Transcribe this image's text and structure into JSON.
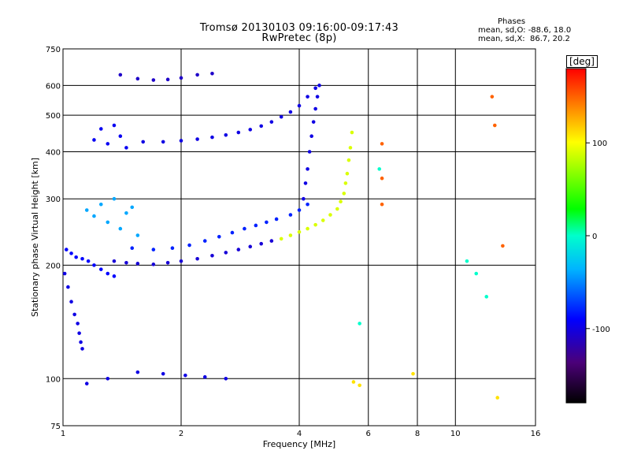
{
  "header": {
    "title": "Tromsø 20130103 09:16:00-09:17:43",
    "subtitle": "RwPretec (8p)",
    "phase_title": "Phases",
    "stat_o": "mean, sd,O: -88.6, 18.0",
    "stat_x": "mean, sd,X:  86.7, 20.2"
  },
  "colorbar": {
    "unit_label": "[deg]",
    "range": [
      -180,
      180
    ],
    "ticks": [
      {
        "value": 100,
        "label": "100"
      },
      {
        "value": 0,
        "label": "0"
      },
      {
        "value": -100,
        "label": "-100"
      }
    ]
  },
  "chart_data": {
    "type": "scatter",
    "xlabel": "Frequency [MHz]",
    "ylabel": "Stationary phase Virtual Height [km]",
    "xscale": "log",
    "yscale": "log",
    "xlim": [
      1,
      16
    ],
    "ylim": [
      75,
      750
    ],
    "xticks": [
      {
        "value": 1,
        "label": "1"
      },
      {
        "value": 2,
        "label": "2"
      },
      {
        "value": 4,
        "label": "4"
      },
      {
        "value": 6,
        "label": "6"
      },
      {
        "value": 8,
        "label": "8"
      },
      {
        "value": 10,
        "label": "10"
      },
      {
        "value": 16,
        "label": "16"
      }
    ],
    "yticks": [
      {
        "value": 75,
        "label": "75"
      },
      {
        "value": 100,
        "label": "100"
      },
      {
        "value": 200,
        "label": "200"
      },
      {
        "value": 300,
        "label": "300"
      },
      {
        "value": 400,
        "label": "400"
      },
      {
        "value": 500,
        "label": "500"
      },
      {
        "value": 600,
        "label": "600"
      },
      {
        "value": 750,
        "label": "750"
      }
    ],
    "grid": true,
    "color_by": "phase (deg)",
    "traces": [
      {
        "name": "",
        "phase": -100,
        "points": [
          [
            1.01,
            190
          ],
          [
            1.03,
            175
          ],
          [
            1.05,
            160
          ],
          [
            1.07,
            148
          ],
          [
            1.09,
            140
          ],
          [
            1.1,
            132
          ],
          [
            1.11,
            125
          ],
          [
            1.12,
            120
          ]
        ]
      },
      {
        "name": "",
        "phase": -90,
        "points": [
          [
            1.02,
            220
          ],
          [
            1.05,
            215
          ],
          [
            1.08,
            210
          ],
          [
            1.12,
            208
          ],
          [
            1.16,
            205
          ],
          [
            1.2,
            200
          ],
          [
            1.25,
            195
          ],
          [
            1.3,
            190
          ],
          [
            1.35,
            187
          ]
        ]
      },
      {
        "name": "",
        "phase": -105,
        "points": [
          [
            1.35,
            205
          ],
          [
            1.45,
            203
          ],
          [
            1.55,
            202
          ],
          [
            1.7,
            201
          ],
          [
            1.85,
            203
          ],
          [
            2.0,
            205
          ],
          [
            2.2,
            208
          ],
          [
            2.4,
            212
          ],
          [
            2.6,
            216
          ],
          [
            2.8,
            220
          ],
          [
            3.0,
            224
          ],
          [
            3.2,
            228
          ],
          [
            3.4,
            232
          ]
        ]
      },
      {
        "name": "",
        "phase": -80,
        "points": [
          [
            1.5,
            222
          ],
          [
            1.7,
            220
          ],
          [
            1.9,
            222
          ],
          [
            2.1,
            226
          ],
          [
            2.3,
            232
          ],
          [
            2.5,
            238
          ],
          [
            2.7,
            244
          ],
          [
            2.9,
            250
          ],
          [
            3.1,
            255
          ],
          [
            3.3,
            260
          ],
          [
            3.5,
            265
          ],
          [
            3.8,
            272
          ],
          [
            4.0,
            280
          ],
          [
            4.2,
            290
          ]
        ]
      },
      {
        "name": "",
        "phase": 90,
        "points": [
          [
            3.6,
            235
          ],
          [
            3.8,
            240
          ],
          [
            4.0,
            245
          ],
          [
            4.2,
            250
          ],
          [
            4.4,
            256
          ],
          [
            4.6,
            263
          ],
          [
            4.8,
            272
          ],
          [
            5.0,
            282
          ],
          [
            5.1,
            295
          ],
          [
            5.2,
            310
          ],
          [
            5.25,
            330
          ],
          [
            5.3,
            350
          ],
          [
            5.35,
            380
          ],
          [
            5.4,
            410
          ],
          [
            5.45,
            450
          ]
        ]
      },
      {
        "name": "",
        "phase": -100,
        "points": [
          [
            4.1,
            300
          ],
          [
            4.15,
            330
          ],
          [
            4.2,
            360
          ],
          [
            4.25,
            400
          ],
          [
            4.3,
            440
          ],
          [
            4.35,
            480
          ],
          [
            4.4,
            520
          ],
          [
            4.45,
            560
          ],
          [
            4.5,
            600
          ]
        ]
      },
      {
        "name": "",
        "phase": -100,
        "points": [
          [
            1.6,
            425
          ],
          [
            1.8,
            425
          ],
          [
            2.0,
            428
          ],
          [
            2.2,
            432
          ],
          [
            2.4,
            437
          ],
          [
            2.6,
            443
          ],
          [
            2.8,
            450
          ],
          [
            3.0,
            458
          ],
          [
            3.2,
            468
          ],
          [
            3.4,
            480
          ],
          [
            3.6,
            495
          ],
          [
            3.8,
            510
          ],
          [
            4.0,
            530
          ],
          [
            4.2,
            560
          ],
          [
            4.4,
            590
          ]
        ]
      },
      {
        "name": "",
        "phase": -40,
        "points": [
          [
            1.15,
            280
          ],
          [
            1.2,
            270
          ],
          [
            1.25,
            290
          ],
          [
            1.3,
            260
          ],
          [
            1.35,
            300
          ],
          [
            1.4,
            250
          ],
          [
            1.45,
            275
          ],
          [
            1.5,
            285
          ],
          [
            1.55,
            240
          ]
        ]
      },
      {
        "name": "",
        "phase": -95,
        "points": [
          [
            1.2,
            430
          ],
          [
            1.25,
            460
          ],
          [
            1.3,
            420
          ],
          [
            1.35,
            470
          ],
          [
            1.4,
            440
          ],
          [
            1.45,
            410
          ]
        ]
      },
      {
        "name": "",
        "phase": -110,
        "points": [
          [
            1.4,
            640
          ],
          [
            1.55,
            625
          ],
          [
            1.7,
            620
          ],
          [
            1.85,
            622
          ],
          [
            2.0,
            628
          ],
          [
            2.2,
            640
          ],
          [
            2.4,
            645
          ]
        ]
      },
      {
        "name": "",
        "phase": -100,
        "points": [
          [
            1.15,
            97
          ],
          [
            1.3,
            100
          ],
          [
            1.55,
            104
          ],
          [
            1.8,
            103
          ],
          [
            2.05,
            102
          ],
          [
            2.3,
            101
          ],
          [
            2.6,
            100
          ]
        ]
      },
      {
        "name": "",
        "phase": 110,
        "points": [
          [
            5.5,
            98
          ],
          [
            5.7,
            96
          ],
          [
            7.8,
            103
          ],
          [
            12.8,
            89
          ]
        ]
      },
      {
        "name": "",
        "phase": 150,
        "points": [
          [
            6.5,
            420
          ],
          [
            6.5,
            340
          ],
          [
            6.5,
            290
          ],
          [
            12.4,
            560
          ],
          [
            12.6,
            470
          ],
          [
            13.2,
            225
          ]
        ]
      },
      {
        "name": "",
        "phase": 0,
        "points": [
          [
            10.7,
            205
          ],
          [
            11.3,
            190
          ],
          [
            12.0,
            165
          ],
          [
            6.4,
            360
          ],
          [
            5.7,
            140
          ]
        ]
      }
    ]
  }
}
